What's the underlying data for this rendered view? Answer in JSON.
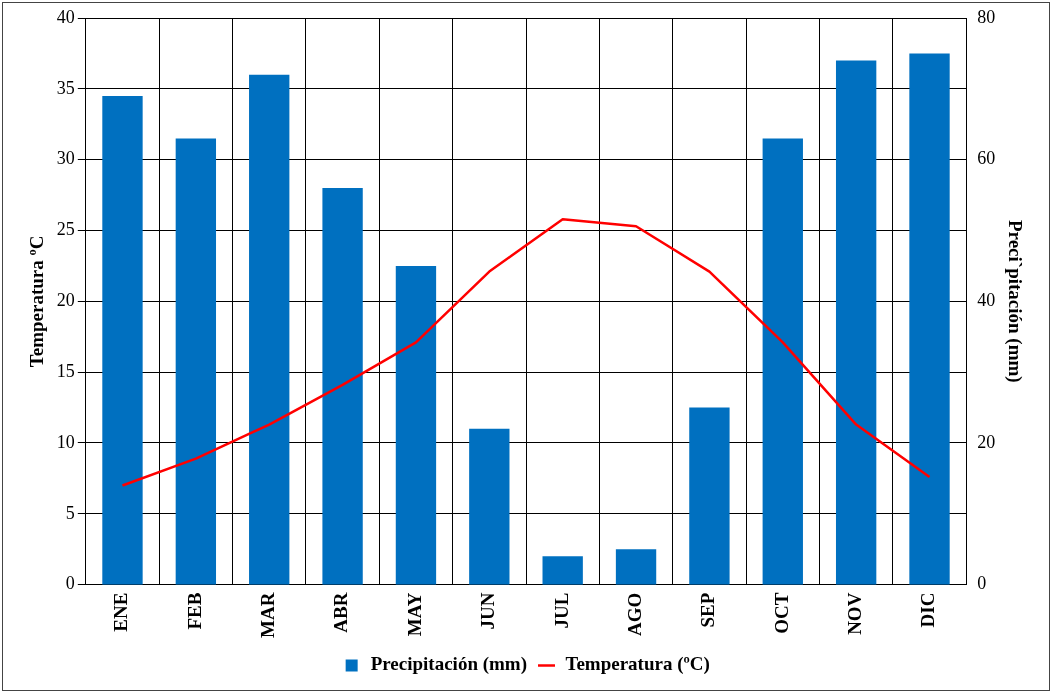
{
  "chart_data": {
    "type": "bar",
    "categories": [
      "ENE",
      "FEB",
      "MAR",
      "ABR",
      "MAY",
      "JUN",
      "JUL",
      "AGO",
      "SEP",
      "OCT",
      "NOV",
      "DIC"
    ],
    "series": [
      {
        "name": "Precipitación (mm)",
        "axis": "y2",
        "color": "#0070c0",
        "values": [
          69,
          63,
          72,
          56,
          45,
          22,
          4,
          5,
          25,
          63,
          74,
          75
        ]
      },
      {
        "name": "Temperatura (ºC)",
        "type": "line",
        "axis": "y",
        "color": "#ff0000",
        "values": [
          7.0,
          8.9,
          11.3,
          14.1,
          17.1,
          22.1,
          25.8,
          25.3,
          22.1,
          17.1,
          11.3,
          7.6
        ]
      }
    ],
    "ylabel": "Temperatura ºC",
    "y2label": "Preci`pitación (mm)",
    "ylim": [
      0,
      40
    ],
    "yticks": [
      0,
      5,
      10,
      15,
      20,
      25,
      30,
      35,
      40
    ],
    "y2lim": [
      0,
      80
    ],
    "y2ticks": [
      0,
      20,
      40,
      60,
      80
    ],
    "grid": true,
    "legend": "bottom",
    "marker": "none",
    "line_style": "solid"
  }
}
